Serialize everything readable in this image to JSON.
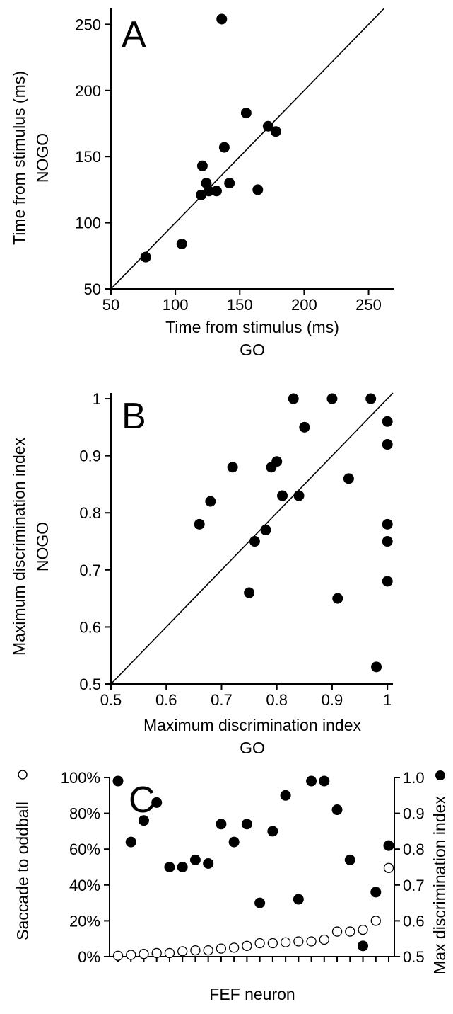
{
  "chart_data": [
    {
      "panel_label": "A",
      "type": "scatter",
      "xlabel": "Time from stimulus (ms)",
      "xlabel_sub": "GO",
      "ylabel": "Time from stimulus (ms)",
      "ylabel_sub": "NOGO",
      "xlim": [
        50,
        270
      ],
      "ylim": [
        50,
        262
      ],
      "xticks": [
        50,
        100,
        150,
        200,
        250
      ],
      "yticks": [
        50,
        100,
        150,
        200,
        250
      ],
      "x": [
        77,
        105,
        120,
        121,
        124,
        126,
        132,
        138,
        142,
        136,
        155,
        164,
        172,
        178
      ],
      "y": [
        74,
        84,
        121,
        143,
        130,
        124,
        124,
        157,
        130,
        254,
        183,
        125,
        173,
        169
      ],
      "reference_line": "unity"
    },
    {
      "panel_label": "B",
      "type": "scatter",
      "xlabel": "Maximum discrimination index",
      "xlabel_sub": "GO",
      "ylabel": "Maximum discrimination index",
      "ylabel_sub": "NOGO",
      "xlim": [
        0.5,
        1.01
      ],
      "ylim": [
        0.5,
        1.01
      ],
      "xticks": [
        0.5,
        0.6,
        0.7,
        0.8,
        0.9,
        1
      ],
      "yticks": [
        0.5,
        0.6,
        0.7,
        0.8,
        0.9,
        1
      ],
      "x": [
        0.66,
        0.68,
        0.72,
        0.75,
        0.76,
        0.78,
        0.79,
        0.8,
        0.81,
        0.83,
        0.84,
        0.85,
        0.9,
        0.91,
        0.93,
        0.97,
        0.98,
        1,
        1,
        1,
        1,
        1
      ],
      "y": [
        0.78,
        0.82,
        0.88,
        0.66,
        0.75,
        0.77,
        0.88,
        0.89,
        0.83,
        1.0,
        0.83,
        0.95,
        1.0,
        0.65,
        0.86,
        1.0,
        0.53,
        0.96,
        0.92,
        0.78,
        0.75,
        0.68
      ],
      "reference_line": "unity"
    },
    {
      "panel_label": "C",
      "type": "scatter",
      "xlabel": "FEF neuron",
      "ylabel_left": "Saccade to oddball",
      "ylabel_right": "Max discrimination index",
      "left_ylim": [
        0,
        100
      ],
      "left_yticks": [
        "0%",
        "20%",
        "40%",
        "60%",
        "80%",
        "100%"
      ],
      "right_ylim": [
        0.5,
        1.0
      ],
      "right_yticks": [
        "0.5",
        "0.6",
        "0.7",
        "0.8",
        "0.9",
        "1.0"
      ],
      "neuron_count": 22,
      "series": [
        {
          "name": "Saccade to oddball",
          "marker": "open-circle",
          "axis": "left",
          "values": [
            0.5,
            1,
            1.5,
            2,
            2,
            3,
            3.5,
            3.5,
            4.5,
            5,
            6,
            7.5,
            7.5,
            8,
            8.5,
            8.5,
            9.5,
            14,
            14,
            15,
            20,
            49.5
          ]
        },
        {
          "name": "Max discrimination index",
          "marker": "filled-circle",
          "axis": "right",
          "values": [
            0.99,
            0.82,
            0.88,
            0.93,
            0.75,
            0.75,
            0.77,
            0.76,
            0.87,
            0.82,
            0.87,
            0.65,
            0.85,
            0.95,
            0.66,
            0.99,
            0.99,
            0.91,
            0.77,
            0.53,
            0.68,
            0.81
          ]
        }
      ]
    }
  ]
}
